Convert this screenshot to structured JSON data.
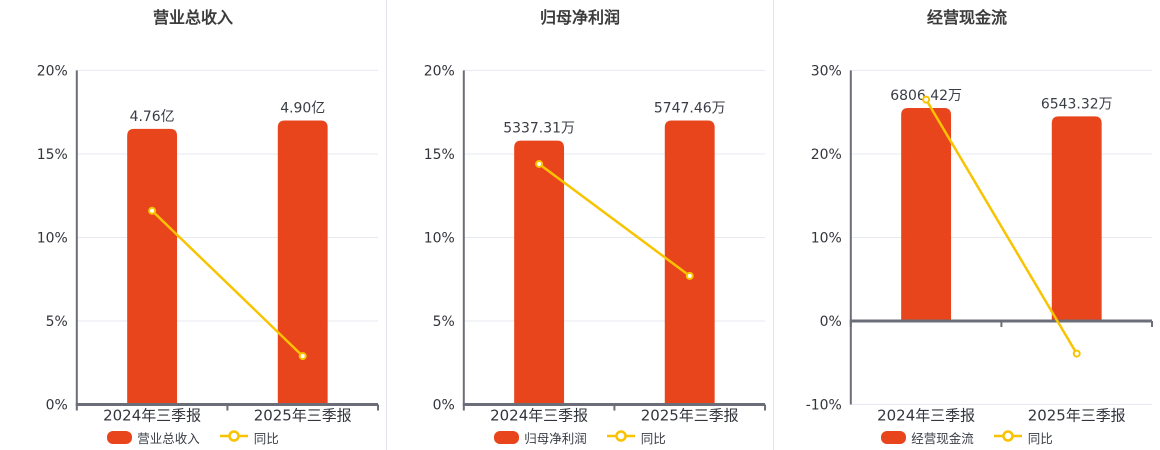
{
  "colors": {
    "bar": "#e8451c",
    "line": "#f8c300",
    "grid": "#e6e9f2",
    "axis": "#6b6e78",
    "tick_text": "#33353c",
    "title_text": "#3c3c3c",
    "background": "#ffffff"
  },
  "chart_data": [
    {
      "type": "bar",
      "title": "营业总收入",
      "categories": [
        "2024年三季报",
        "2025年三季报"
      ],
      "series": [
        {
          "name": "营业总收入",
          "kind": "bar",
          "labels": [
            "4.76亿",
            "4.90亿"
          ],
          "values": [
            4.76,
            4.9
          ],
          "unit": "亿"
        },
        {
          "name": "同比",
          "kind": "line",
          "values_pct": [
            11.6,
            2.9
          ]
        }
      ],
      "yaxis": {
        "min": 0,
        "max": 20,
        "tick_values": [
          0,
          5,
          10,
          15,
          20
        ],
        "ticks": [
          "0%",
          "5%",
          "10%",
          "15%",
          "20%"
        ]
      },
      "bar_top_pct": [
        16.5,
        17.0
      ],
      "legend_position": "bottom",
      "grid": true
    },
    {
      "type": "bar",
      "title": "归母净利润",
      "categories": [
        "2024年三季报",
        "2025年三季报"
      ],
      "series": [
        {
          "name": "归母净利润",
          "kind": "bar",
          "labels": [
            "5337.31万",
            "5747.46万"
          ],
          "values": [
            5337.31,
            5747.46
          ],
          "unit": "万"
        },
        {
          "name": "同比",
          "kind": "line",
          "values_pct": [
            14.4,
            7.7
          ]
        }
      ],
      "yaxis": {
        "min": 0,
        "max": 20,
        "tick_values": [
          0,
          5,
          10,
          15,
          20
        ],
        "ticks": [
          "0%",
          "5%",
          "10%",
          "15%",
          "20%"
        ]
      },
      "bar_top_pct": [
        15.8,
        17.0
      ],
      "legend_position": "bottom",
      "grid": true
    },
    {
      "type": "bar",
      "title": "经营现金流",
      "categories": [
        "2024年三季报",
        "2025年三季报"
      ],
      "series": [
        {
          "name": "经营现金流",
          "kind": "bar",
          "labels": [
            "6806.42万",
            "6543.32万"
          ],
          "values": [
            6806.42,
            6543.32
          ],
          "unit": "万"
        },
        {
          "name": "同比",
          "kind": "line",
          "values_pct": [
            26.5,
            -3.9
          ]
        }
      ],
      "yaxis": {
        "min": -10,
        "max": 30,
        "tick_values": [
          -10,
          0,
          10,
          20,
          30
        ],
        "ticks": [
          "-10%",
          "0%",
          "10%",
          "20%",
          "30%"
        ]
      },
      "bar_top_pct": [
        25.5,
        24.5
      ],
      "legend_position": "bottom",
      "grid": true
    }
  ]
}
